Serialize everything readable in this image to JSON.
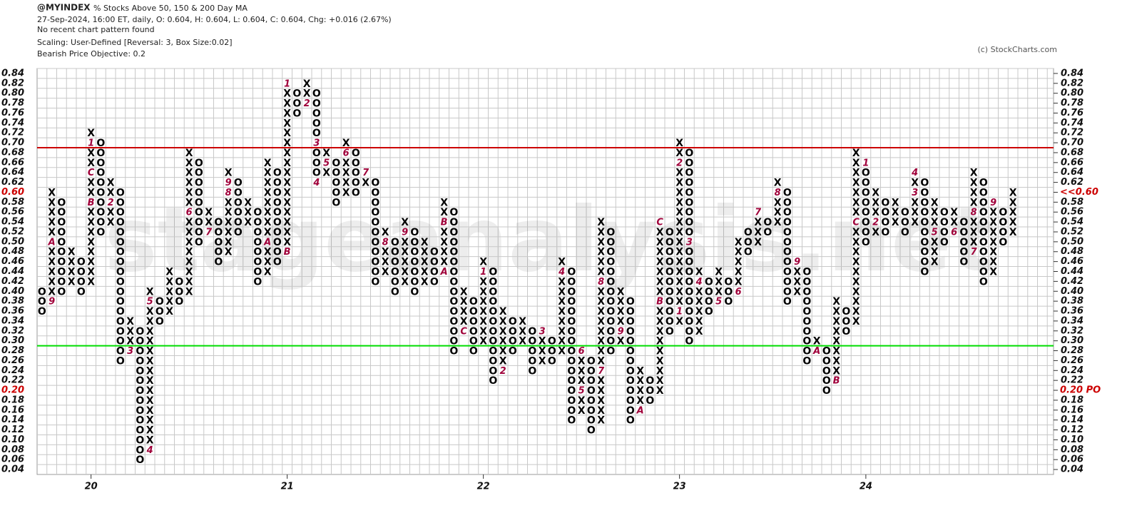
{
  "chart_data": {
    "type": "point-and-figure",
    "symbol": "@MYINDEX",
    "title": "% Stocks Above 50, 150 & 200 Day MA",
    "quote_line": "27-Sep-2024, 16:00 ET, daily, O: 0.604, H: 0.604, L: 0.604, C: 0.604, Chg: +0.016 (2.67%)",
    "pattern_note": "No recent chart pattern found",
    "scaling": "Scaling: User-Defined [Reversal: 3, Box Size:0.02]",
    "objective_note": "Bearish Price Objective: 0.2",
    "copyright": "(c) StockCharts.com",
    "watermark": "stageanalysis.net",
    "box_size": 0.02,
    "ylim": [
      0.03,
      0.85
    ],
    "yticks": [
      {
        "value": 0.04,
        "label": "0.04"
      },
      {
        "value": 0.06,
        "label": "0.06"
      },
      {
        "value": 0.08,
        "label": "0.08"
      },
      {
        "value": 0.1,
        "label": "0.10"
      },
      {
        "value": 0.12,
        "label": "0.12"
      },
      {
        "value": 0.14,
        "label": "0.14"
      },
      {
        "value": 0.16,
        "label": "0.16"
      },
      {
        "value": 0.18,
        "label": "0.18"
      },
      {
        "value": 0.2,
        "label": "0.20"
      },
      {
        "value": 0.22,
        "label": "0.22"
      },
      {
        "value": 0.24,
        "label": "0.24"
      },
      {
        "value": 0.26,
        "label": "0.26"
      },
      {
        "value": 0.28,
        "label": "0.28"
      },
      {
        "value": 0.3,
        "label": "0.30"
      },
      {
        "value": 0.32,
        "label": "0.32"
      },
      {
        "value": 0.34,
        "label": "0.34"
      },
      {
        "value": 0.36,
        "label": "0.36"
      },
      {
        "value": 0.38,
        "label": "0.38"
      },
      {
        "value": 0.4,
        "label": "0.40"
      },
      {
        "value": 0.42,
        "label": "0.42"
      },
      {
        "value": 0.44,
        "label": "0.44"
      },
      {
        "value": 0.46,
        "label": "0.46"
      },
      {
        "value": 0.48,
        "label": "0.48"
      },
      {
        "value": 0.5,
        "label": "0.50"
      },
      {
        "value": 0.52,
        "label": "0.52"
      },
      {
        "value": 0.54,
        "label": "0.54"
      },
      {
        "value": 0.56,
        "label": "0.56"
      },
      {
        "value": 0.58,
        "label": "0.58"
      },
      {
        "value": 0.6,
        "label": "0.60"
      },
      {
        "value": 0.62,
        "label": "0.62"
      },
      {
        "value": 0.64,
        "label": "0.64"
      },
      {
        "value": 0.66,
        "label": "0.66"
      },
      {
        "value": 0.68,
        "label": "0.68"
      },
      {
        "value": 0.7,
        "label": "0.70"
      },
      {
        "value": 0.72,
        "label": "0.72"
      },
      {
        "value": 0.74,
        "label": "0.74"
      },
      {
        "value": 0.76,
        "label": "0.76"
      },
      {
        "value": 0.78,
        "label": "0.78"
      },
      {
        "value": 0.8,
        "label": "0.80"
      },
      {
        "value": 0.82,
        "label": "0.82"
      },
      {
        "value": 0.84,
        "label": "0.84"
      }
    ],
    "last_price": {
      "value": 0.6,
      "label": "<<0.60",
      "color": "#cc0000"
    },
    "objective": {
      "value": 0.2,
      "label": "0.20 PO",
      "color": "#cc0000"
    },
    "hlines": [
      {
        "value": 0.69,
        "color": "#cc0000"
      },
      {
        "value": 0.29,
        "color": "#00dd00"
      }
    ],
    "xlabels": [
      {
        "column": 5,
        "label": "20"
      },
      {
        "column": 25,
        "label": "21"
      },
      {
        "column": 45,
        "label": "22"
      },
      {
        "column": 65,
        "label": "23"
      },
      {
        "column": 84,
        "label": "24"
      }
    ],
    "columns": [
      {
        "type": "O",
        "low": 0.36,
        "high": 0.4
      },
      {
        "type": "X",
        "low": 0.38,
        "high": 0.6
      },
      {
        "type": "O",
        "low": 0.4,
        "high": 0.58
      },
      {
        "type": "X",
        "low": 0.42,
        "high": 0.48
      },
      {
        "type": "O",
        "low": 0.4,
        "high": 0.46
      },
      {
        "type": "X",
        "low": 0.42,
        "high": 0.72
      },
      {
        "type": "O",
        "low": 0.52,
        "high": 0.7
      },
      {
        "type": "X",
        "low": 0.54,
        "high": 0.62
      },
      {
        "type": "O",
        "low": 0.26,
        "high": 0.6
      },
      {
        "type": "X",
        "low": 0.28,
        "high": 0.34
      },
      {
        "type": "O",
        "low": 0.06,
        "high": 0.32
      },
      {
        "type": "X",
        "low": 0.08,
        "high": 0.4
      },
      {
        "type": "O",
        "low": 0.34,
        "high": 0.38
      },
      {
        "type": "X",
        "low": 0.36,
        "high": 0.44
      },
      {
        "type": "O",
        "low": 0.38,
        "high": 0.42
      },
      {
        "type": "X",
        "low": 0.4,
        "high": 0.68
      },
      {
        "type": "O",
        "low": 0.5,
        "high": 0.66
      },
      {
        "type": "X",
        "low": 0.52,
        "high": 0.56
      },
      {
        "type": "O",
        "low": 0.46,
        "high": 0.54
      },
      {
        "type": "X",
        "low": 0.48,
        "high": 0.64
      },
      {
        "type": "O",
        "low": 0.52,
        "high": 0.62
      },
      {
        "type": "X",
        "low": 0.54,
        "high": 0.58
      },
      {
        "type": "O",
        "low": 0.42,
        "high": 0.56
      },
      {
        "type": "X",
        "low": 0.44,
        "high": 0.66
      },
      {
        "type": "O",
        "low": 0.46,
        "high": 0.64
      },
      {
        "type": "X",
        "low": 0.48,
        "high": 0.82
      },
      {
        "type": "O",
        "low": 0.76,
        "high": 0.8
      },
      {
        "type": "X",
        "low": 0.78,
        "high": 0.82
      },
      {
        "type": "O",
        "low": 0.62,
        "high": 0.8
      },
      {
        "type": "X",
        "low": 0.64,
        "high": 0.68
      },
      {
        "type": "O",
        "low": 0.58,
        "high": 0.66
      },
      {
        "type": "X",
        "low": 0.6,
        "high": 0.7
      },
      {
        "type": "O",
        "low": 0.6,
        "high": 0.68
      },
      {
        "type": "X",
        "low": 0.62,
        "high": 0.64
      },
      {
        "type": "O",
        "low": 0.42,
        "high": 0.62
      },
      {
        "type": "X",
        "low": 0.44,
        "high": 0.52
      },
      {
        "type": "O",
        "low": 0.4,
        "high": 0.5
      },
      {
        "type": "X",
        "low": 0.42,
        "high": 0.54
      },
      {
        "type": "O",
        "low": 0.4,
        "high": 0.52
      },
      {
        "type": "X",
        "low": 0.42,
        "high": 0.5
      },
      {
        "type": "O",
        "low": 0.42,
        "high": 0.48
      },
      {
        "type": "X",
        "low": 0.44,
        "high": 0.58
      },
      {
        "type": "O",
        "low": 0.28,
        "high": 0.56
      },
      {
        "type": "X",
        "low": 0.32,
        "high": 0.4
      },
      {
        "type": "O",
        "low": 0.28,
        "high": 0.38
      },
      {
        "type": "X",
        "low": 0.3,
        "high": 0.46
      },
      {
        "type": "O",
        "low": 0.22,
        "high": 0.44
      },
      {
        "type": "X",
        "low": 0.24,
        "high": 0.36
      },
      {
        "type": "O",
        "low": 0.28,
        "high": 0.34
      },
      {
        "type": "X",
        "low": 0.3,
        "high": 0.34
      },
      {
        "type": "O",
        "low": 0.24,
        "high": 0.32
      },
      {
        "type": "X",
        "low": 0.26,
        "high": 0.32
      },
      {
        "type": "O",
        "low": 0.26,
        "high": 0.3
      },
      {
        "type": "X",
        "low": 0.28,
        "high": 0.46
      },
      {
        "type": "O",
        "low": 0.14,
        "high": 0.44
      },
      {
        "type": "X",
        "low": 0.16,
        "high": 0.28
      },
      {
        "type": "O",
        "low": 0.12,
        "high": 0.26
      },
      {
        "type": "X",
        "low": 0.14,
        "high": 0.54
      },
      {
        "type": "O",
        "low": 0.28,
        "high": 0.52
      },
      {
        "type": "X",
        "low": 0.3,
        "high": 0.4
      },
      {
        "type": "O",
        "low": 0.14,
        "high": 0.38
      },
      {
        "type": "X",
        "low": 0.16,
        "high": 0.24
      },
      {
        "type": "O",
        "low": 0.18,
        "high": 0.22
      },
      {
        "type": "X",
        "low": 0.2,
        "high": 0.54
      },
      {
        "type": "O",
        "low": 0.32,
        "high": 0.52
      },
      {
        "type": "X",
        "low": 0.34,
        "high": 0.7
      },
      {
        "type": "O",
        "low": 0.3,
        "high": 0.68
      },
      {
        "type": "X",
        "low": 0.32,
        "high": 0.44
      },
      {
        "type": "O",
        "low": 0.36,
        "high": 0.42
      },
      {
        "type": "X",
        "low": 0.38,
        "high": 0.44
      },
      {
        "type": "O",
        "low": 0.38,
        "high": 0.42
      },
      {
        "type": "X",
        "low": 0.4,
        "high": 0.5
      },
      {
        "type": "O",
        "low": 0.48,
        "high": 0.52
      },
      {
        "type": "X",
        "low": 0.5,
        "high": 0.56
      },
      {
        "type": "O",
        "low": 0.52,
        "high": 0.54
      },
      {
        "type": "X",
        "low": 0.54,
        "high": 0.62
      },
      {
        "type": "O",
        "low": 0.38,
        "high": 0.6
      },
      {
        "type": "X",
        "low": 0.4,
        "high": 0.46
      },
      {
        "type": "O",
        "low": 0.26,
        "high": 0.44
      },
      {
        "type": "X",
        "low": 0.28,
        "high": 0.3
      },
      {
        "type": "O",
        "low": 0.2,
        "high": 0.28
      },
      {
        "type": "X",
        "low": 0.22,
        "high": 0.38
      },
      {
        "type": "O",
        "low": 0.32,
        "high": 0.36
      },
      {
        "type": "X",
        "low": 0.34,
        "high": 0.68
      },
      {
        "type": "O",
        "low": 0.5,
        "high": 0.66
      },
      {
        "type": "X",
        "low": 0.52,
        "high": 0.6
      },
      {
        "type": "O",
        "low": 0.52,
        "high": 0.58
      },
      {
        "type": "X",
        "low": 0.54,
        "high": 0.58
      },
      {
        "type": "O",
        "low": 0.52,
        "high": 0.56
      },
      {
        "type": "X",
        "low": 0.54,
        "high": 0.64
      },
      {
        "type": "O",
        "low": 0.44,
        "high": 0.62
      },
      {
        "type": "X",
        "low": 0.46,
        "high": 0.58
      },
      {
        "type": "O",
        "low": 0.5,
        "high": 0.56
      },
      {
        "type": "X",
        "low": 0.52,
        "high": 0.56
      },
      {
        "type": "O",
        "low": 0.46,
        "high": 0.54
      },
      {
        "type": "X",
        "low": 0.48,
        "high": 0.64
      },
      {
        "type": "O",
        "low": 0.42,
        "high": 0.62
      },
      {
        "type": "X",
        "low": 0.44,
        "high": 0.58
      },
      {
        "type": "O",
        "low": 0.5,
        "high": 0.56
      },
      {
        "type": "X",
        "low": 0.52,
        "high": 0.6
      }
    ],
    "month_marks": [
      {
        "column": 1,
        "box": 0.38,
        "label": "9"
      },
      {
        "column": 1,
        "box": 0.5,
        "label": "A"
      },
      {
        "column": 5,
        "box": 0.7,
        "label": "1"
      },
      {
        "column": 5,
        "box": 0.64,
        "label": "C"
      },
      {
        "column": 5,
        "box": 0.58,
        "label": "B"
      },
      {
        "column": 7,
        "box": 0.58,
        "label": "2"
      },
      {
        "column": 9,
        "box": 0.28,
        "label": "3"
      },
      {
        "column": 11,
        "box": 0.08,
        "label": "4"
      },
      {
        "column": 11,
        "box": 0.38,
        "label": "5"
      },
      {
        "column": 15,
        "box": 0.56,
        "label": "6"
      },
      {
        "column": 17,
        "box": 0.52,
        "label": "7"
      },
      {
        "column": 19,
        "box": 0.6,
        "label": "8"
      },
      {
        "column": 19,
        "box": 0.62,
        "label": "9"
      },
      {
        "column": 23,
        "box": 0.5,
        "label": "A"
      },
      {
        "column": 25,
        "box": 0.48,
        "label": "B"
      },
      {
        "column": 25,
        "box": 0.82,
        "label": "1"
      },
      {
        "column": 27,
        "box": 0.78,
        "label": "2"
      },
      {
        "column": 28,
        "box": 0.7,
        "label": "3"
      },
      {
        "column": 28,
        "box": 0.62,
        "label": "4"
      },
      {
        "column": 29,
        "box": 0.66,
        "label": "5"
      },
      {
        "column": 31,
        "box": 0.68,
        "label": "6"
      },
      {
        "column": 33,
        "box": 0.64,
        "label": "7"
      },
      {
        "column": 35,
        "box": 0.5,
        "label": "8"
      },
      {
        "column": 37,
        "box": 0.52,
        "label": "9"
      },
      {
        "column": 41,
        "box": 0.44,
        "label": "A"
      },
      {
        "column": 41,
        "box": 0.54,
        "label": "B"
      },
      {
        "column": 43,
        "box": 0.32,
        "label": "C"
      },
      {
        "column": 45,
        "box": 0.44,
        "label": "1"
      },
      {
        "column": 47,
        "box": 0.24,
        "label": "2"
      },
      {
        "column": 51,
        "box": 0.32,
        "label": "3"
      },
      {
        "column": 53,
        "box": 0.44,
        "label": "4"
      },
      {
        "column": 55,
        "box": 0.2,
        "label": "5"
      },
      {
        "column": 55,
        "box": 0.28,
        "label": "6"
      },
      {
        "column": 57,
        "box": 0.24,
        "label": "7"
      },
      {
        "column": 57,
        "box": 0.42,
        "label": "8"
      },
      {
        "column": 59,
        "box": 0.32,
        "label": "9"
      },
      {
        "column": 61,
        "box": 0.16,
        "label": "A"
      },
      {
        "column": 63,
        "box": 0.38,
        "label": "B"
      },
      {
        "column": 63,
        "box": 0.54,
        "label": "C"
      },
      {
        "column": 65,
        "box": 0.36,
        "label": "1"
      },
      {
        "column": 65,
        "box": 0.66,
        "label": "2"
      },
      {
        "column": 66,
        "box": 0.5,
        "label": "3"
      },
      {
        "column": 67,
        "box": 0.42,
        "label": "4"
      },
      {
        "column": 69,
        "box": 0.38,
        "label": "5"
      },
      {
        "column": 71,
        "box": 0.4,
        "label": "6"
      },
      {
        "column": 73,
        "box": 0.56,
        "label": "7"
      },
      {
        "column": 75,
        "box": 0.6,
        "label": "8"
      },
      {
        "column": 77,
        "box": 0.46,
        "label": "9"
      },
      {
        "column": 79,
        "box": 0.28,
        "label": "A"
      },
      {
        "column": 81,
        "box": 0.22,
        "label": "B"
      },
      {
        "column": 83,
        "box": 0.54,
        "label": "C"
      },
      {
        "column": 84,
        "box": 0.66,
        "label": "1"
      },
      {
        "column": 85,
        "box": 0.54,
        "label": "2"
      },
      {
        "column": 89,
        "box": 0.6,
        "label": "3"
      },
      {
        "column": 89,
        "box": 0.64,
        "label": "4"
      },
      {
        "column": 91,
        "box": 0.52,
        "label": "5"
      },
      {
        "column": 93,
        "box": 0.52,
        "label": "6"
      },
      {
        "column": 95,
        "box": 0.48,
        "label": "7"
      },
      {
        "column": 95,
        "box": 0.56,
        "label": "8"
      },
      {
        "column": 97,
        "box": 0.58,
        "label": "9"
      }
    ]
  }
}
